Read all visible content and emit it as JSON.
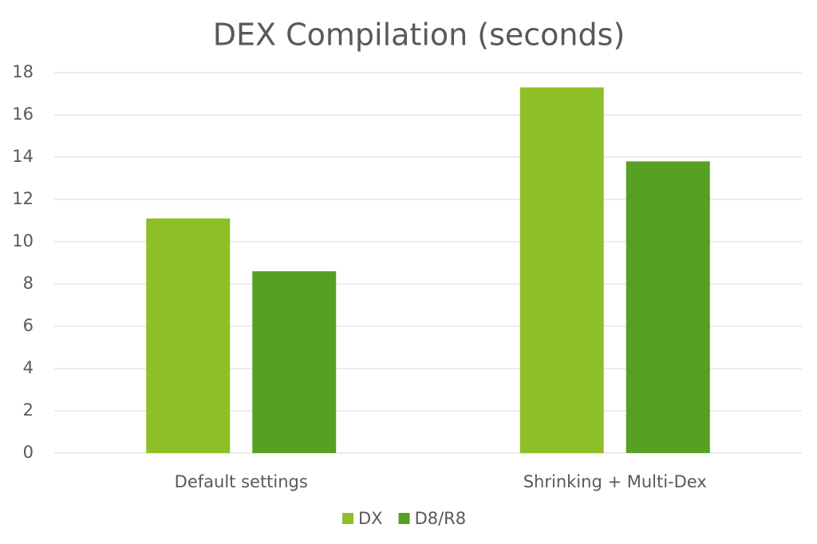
{
  "chart_data": {
    "type": "bar",
    "title": "DEX Compilation (seconds)",
    "categories": [
      "Default settings",
      "Shrinking + Multi-Dex"
    ],
    "series": [
      {
        "name": "DX",
        "color": "#8fbf26",
        "values": [
          11.1,
          17.3
        ]
      },
      {
        "name": "D8/R8",
        "color": "#56a024",
        "values": [
          8.6,
          13.8
        ]
      }
    ],
    "ylim": [
      0,
      18
    ],
    "yticks": [
      0,
      2,
      4,
      6,
      8,
      10,
      12,
      14,
      16,
      18
    ],
    "grid": true,
    "legend": "bottom"
  }
}
